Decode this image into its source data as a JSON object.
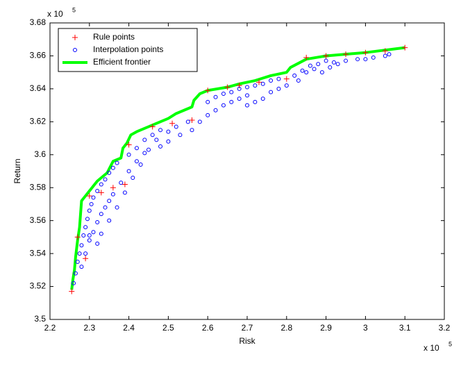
{
  "chart_data": {
    "type": "scatter",
    "xlabel": "Risk",
    "ylabel": "Return",
    "x_exponent": {
      "base": "x 10",
      "power": "5"
    },
    "y_exponent": {
      "base": "x 10",
      "power": "5"
    },
    "xlim": [
      2.2,
      3.2
    ],
    "ylim": [
      3.5,
      3.68
    ],
    "xticks": [
      2.2,
      2.3,
      2.4,
      2.5,
      2.6,
      2.7,
      2.8,
      2.9,
      3,
      3.1,
      3.2
    ],
    "yticks": [
      3.5,
      3.52,
      3.54,
      3.56,
      3.58,
      3.6,
      3.62,
      3.64,
      3.66,
      3.68
    ],
    "legend": "upper left",
    "series": [
      {
        "name": "Rule points",
        "color": "#ff0000",
        "marker": "+",
        "x": [
          2.255,
          2.27,
          2.29,
          2.3,
          2.33,
          2.36,
          2.39,
          2.4,
          2.46,
          2.51,
          2.56,
          2.6,
          2.65,
          2.68,
          2.73,
          2.8,
          2.85,
          2.9,
          2.95,
          3.0,
          3.05,
          3.1
        ],
        "values": [
          3.517,
          3.55,
          3.537,
          3.575,
          3.577,
          3.58,
          3.582,
          3.606,
          3.617,
          3.619,
          3.621,
          3.639,
          3.641,
          3.642,
          3.644,
          3.646,
          3.659,
          3.66,
          3.661,
          3.662,
          3.663,
          3.665
        ]
      },
      {
        "name": "Interpolation points",
        "color": "#0000ff",
        "marker": "o",
        "x": [
          2.26,
          2.265,
          2.27,
          2.275,
          2.28,
          2.285,
          2.29,
          2.295,
          2.3,
          2.305,
          2.31,
          2.32,
          2.33,
          2.34,
          2.35,
          2.36,
          2.37,
          2.3,
          2.31,
          2.32,
          2.33,
          2.34,
          2.35,
          2.36,
          2.38,
          2.4,
          2.42,
          2.44,
          2.28,
          2.29,
          2.3,
          2.32,
          2.33,
          2.35,
          2.37,
          2.39,
          2.41,
          2.43,
          2.45,
          2.47,
          2.4,
          2.42,
          2.44,
          2.46,
          2.48,
          2.5,
          2.52,
          2.55,
          2.48,
          2.5,
          2.53,
          2.56,
          2.58,
          2.6,
          2.62,
          2.64,
          2.66,
          2.68,
          2.7,
          2.6,
          2.62,
          2.64,
          2.66,
          2.68,
          2.7,
          2.72,
          2.74,
          2.76,
          2.78,
          2.7,
          2.72,
          2.74,
          2.76,
          2.78,
          2.8,
          2.82,
          2.84,
          2.86,
          2.88,
          2.9,
          2.92,
          2.95,
          2.98,
          3.0,
          3.02,
          3.06,
          2.83,
          2.85,
          2.87,
          2.89,
          2.91,
          2.93,
          3.05
        ],
        "values": [
          3.522,
          3.528,
          3.535,
          3.54,
          3.545,
          3.551,
          3.556,
          3.561,
          3.566,
          3.57,
          3.574,
          3.578,
          3.582,
          3.585,
          3.589,
          3.592,
          3.595,
          3.548,
          3.553,
          3.559,
          3.564,
          3.568,
          3.572,
          3.576,
          3.583,
          3.59,
          3.596,
          3.601,
          3.532,
          3.54,
          3.551,
          3.546,
          3.552,
          3.56,
          3.568,
          3.577,
          3.586,
          3.594,
          3.603,
          3.609,
          3.6,
          3.604,
          3.609,
          3.612,
          3.615,
          3.614,
          3.617,
          3.62,
          3.605,
          3.608,
          3.612,
          3.615,
          3.62,
          3.624,
          3.627,
          3.63,
          3.632,
          3.634,
          3.636,
          3.632,
          3.635,
          3.637,
          3.638,
          3.64,
          3.641,
          3.642,
          3.643,
          3.645,
          3.646,
          3.63,
          3.632,
          3.634,
          3.638,
          3.64,
          3.642,
          3.648,
          3.651,
          3.654,
          3.655,
          3.657,
          3.656,
          3.657,
          3.658,
          3.658,
          3.659,
          3.661,
          3.645,
          3.65,
          3.652,
          3.65,
          3.653,
          3.655,
          3.66
        ]
      },
      {
        "name": "Efficient frontier",
        "color": "#00ff00",
        "marker": "line",
        "x": [
          2.255,
          2.258,
          2.262,
          2.265,
          2.27,
          2.275,
          2.28,
          2.29,
          2.3,
          2.31,
          2.32,
          2.33,
          2.345,
          2.36,
          2.38,
          2.385,
          2.395,
          2.405,
          2.42,
          2.44,
          2.46,
          2.48,
          2.5,
          2.52,
          2.54,
          2.56,
          2.565,
          2.58,
          2.6,
          2.65,
          2.68,
          2.72,
          2.76,
          2.8,
          2.81,
          2.85,
          2.9,
          3.0,
          3.1
        ],
        "values": [
          3.518,
          3.524,
          3.53,
          3.538,
          3.548,
          3.556,
          3.572,
          3.575,
          3.578,
          3.581,
          3.584,
          3.586,
          3.589,
          3.596,
          3.598,
          3.604,
          3.607,
          3.612,
          3.614,
          3.616,
          3.618,
          3.62,
          3.622,
          3.625,
          3.627,
          3.629,
          3.633,
          3.637,
          3.639,
          3.641,
          3.643,
          3.645,
          3.648,
          3.65,
          3.653,
          3.658,
          3.66,
          3.662,
          3.665
        ]
      }
    ]
  }
}
